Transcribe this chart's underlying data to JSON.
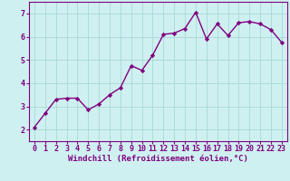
{
  "x": [
    0,
    1,
    2,
    3,
    4,
    5,
    6,
    7,
    8,
    9,
    10,
    11,
    12,
    13,
    14,
    15,
    16,
    17,
    18,
    19,
    20,
    21,
    22,
    23
  ],
  "y": [
    2.1,
    2.7,
    3.3,
    3.35,
    3.35,
    2.85,
    3.1,
    3.5,
    3.8,
    4.75,
    4.55,
    5.2,
    6.1,
    6.15,
    6.35,
    7.05,
    5.9,
    6.55,
    6.05,
    6.6,
    6.65,
    6.55,
    6.3,
    5.75
  ],
  "line_color": "#800080",
  "marker": "D",
  "marker_size": 2.2,
  "line_width": 1.0,
  "bg_color": "#cff0f0",
  "grid_color": "#a8d8d8",
  "xlabel": "Windchill (Refroidissement éolien,°C)",
  "xlabel_color": "#800080",
  "xlabel_fontsize": 6.5,
  "tick_color": "#800080",
  "tick_fontsize": 6.0,
  "ylim": [
    1.5,
    7.5
  ],
  "xlim": [
    -0.5,
    23.5
  ],
  "yticks": [
    2,
    3,
    4,
    5,
    6,
    7
  ],
  "xticks": [
    0,
    1,
    2,
    3,
    4,
    5,
    6,
    7,
    8,
    9,
    10,
    11,
    12,
    13,
    14,
    15,
    16,
    17,
    18,
    19,
    20,
    21,
    22,
    23
  ],
  "spine_color": "#800080",
  "fig_width": 3.2,
  "fig_height": 2.0,
  "dpi": 100
}
